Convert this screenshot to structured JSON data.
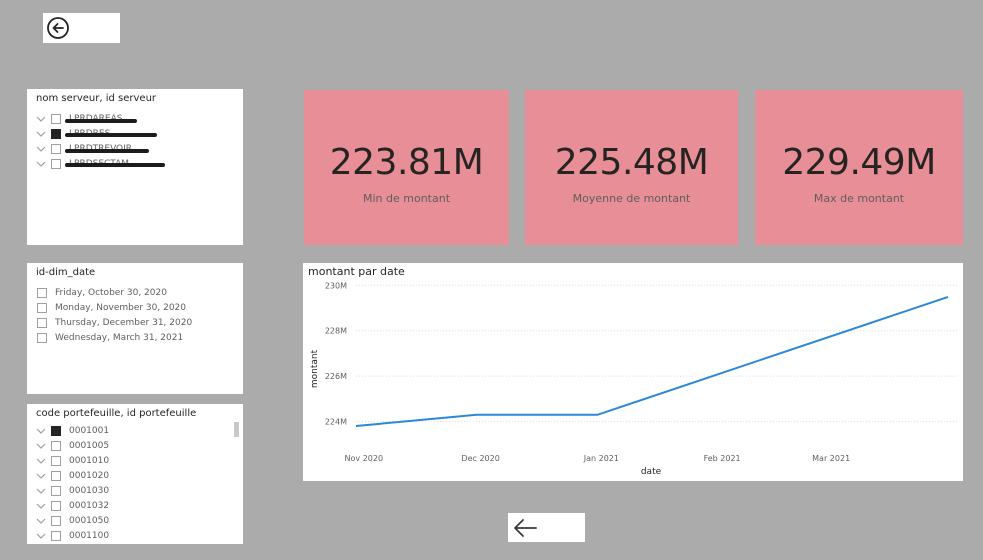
{
  "nav": {
    "back_top_icon": "circle-arrow-left-icon",
    "back_bottom_icon": "arrow-left-icon"
  },
  "slicer_server": {
    "title": "nom serveur, id serveur",
    "items": [
      {
        "label": "LPRDAREAS",
        "checked": false,
        "redacted": true
      },
      {
        "label": "LPRDRES",
        "checked": true,
        "redacted": true
      },
      {
        "label": "LPRDTREVOIR",
        "checked": false,
        "redacted": true
      },
      {
        "label": "LPRDSECTAM",
        "checked": false,
        "redacted": true
      }
    ]
  },
  "slicer_date": {
    "title": "id-dim_date",
    "items": [
      {
        "label": "Friday, October 30, 2020",
        "checked": false
      },
      {
        "label": "Monday, November 30, 2020",
        "checked": false
      },
      {
        "label": "Thursday, December 31, 2020",
        "checked": false
      },
      {
        "label": "Wednesday, March 31, 2021",
        "checked": false
      }
    ]
  },
  "slicer_portefeuille": {
    "title": "code portefeuille, id portefeuille",
    "items": [
      {
        "label": "0001001",
        "checked": true
      },
      {
        "label": "0001005",
        "checked": false
      },
      {
        "label": "0001010",
        "checked": false
      },
      {
        "label": "0001020",
        "checked": false
      },
      {
        "label": "0001030",
        "checked": false
      },
      {
        "label": "0001032",
        "checked": false
      },
      {
        "label": "0001050",
        "checked": false
      },
      {
        "label": "0001100",
        "checked": false
      }
    ]
  },
  "cards": [
    {
      "value": "223.81M",
      "label": "Min de montant"
    },
    {
      "value": "225.48M",
      "label": "Moyenne de montant"
    },
    {
      "value": "229.49M",
      "label": "Max de montant"
    }
  ],
  "colors": {
    "background": "#ababab",
    "card": "#e88e96",
    "line": "#2b88d8"
  },
  "chart_data": {
    "type": "line",
    "title": "montant par date",
    "xlabel": "date",
    "ylabel": "montant",
    "x": [
      "2020-10-30",
      "2020-11-30",
      "2020-12-31",
      "2021-03-31"
    ],
    "x_tick_labels": [
      "Nov 2020",
      "Dec 2020",
      "Jan 2021",
      "Feb 2021",
      "Mar 2021"
    ],
    "x_ticks": [
      "2020-11-01",
      "2020-12-01",
      "2021-01-01",
      "2021-02-01",
      "2021-03-01"
    ],
    "xlim": [
      "2020-10-30",
      "2021-03-31"
    ],
    "series": [
      {
        "values": [
          223.81,
          224.3,
          224.3,
          229.49
        ]
      }
    ],
    "y_tick_labels": [
      "224M",
      "226M",
      "228M",
      "230M"
    ],
    "y_ticks": [
      224,
      226,
      228,
      230
    ],
    "ylim": [
      223.5,
      230.1
    ],
    "grid": true
  }
}
